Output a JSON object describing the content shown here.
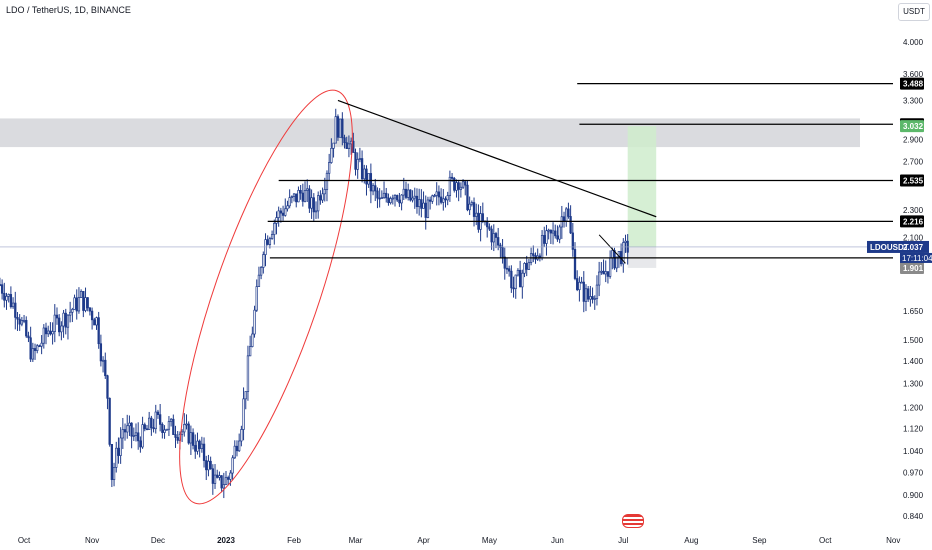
{
  "header": {
    "title": "LDO / TetherUS, 1D, BINANCE",
    "currency": "USDT"
  },
  "colors": {
    "up": "#1e3a8a",
    "down": "#1e3a8a",
    "zone": "#d6d7dc",
    "target": "#cfeccd",
    "ellipse": "#ef3b3b",
    "trend": "#000000",
    "price_label": "#1e3a8a"
  },
  "icons": {
    "flag": "us-flag-icon"
  },
  "chart_data": {
    "type": "candlestick",
    "title": "LDO / TetherUS, 1D, BINANCE",
    "yscale": "log",
    "ylim": [
      0.8,
      4.5
    ],
    "y_ticks": [
      "4.000",
      "3.600",
      "3.300",
      "2.900",
      "2.700",
      "2.300",
      "2.100",
      "1.650",
      "1.500",
      "1.400",
      "1.300",
      "1.200",
      "1.120",
      "1.040",
      "0.970",
      "0.900",
      "0.840"
    ],
    "x_ticks": [
      "Oct",
      "Nov",
      "Dec",
      "2023",
      "Feb",
      "Mar",
      "Apr",
      "May",
      "Jun",
      "Jul",
      "Aug",
      "Sep",
      "Oct",
      "Nov"
    ],
    "price_path": [
      [
        "2022-09-20",
        1.8
      ],
      [
        "2022-09-28",
        1.65
      ],
      [
        "2022-10-05",
        1.42
      ],
      [
        "2022-10-12",
        1.55
      ],
      [
        "2022-10-20",
        1.62
      ],
      [
        "2022-10-27",
        1.72
      ],
      [
        "2022-11-03",
        1.6
      ],
      [
        "2022-11-08",
        1.25
      ],
      [
        "2022-11-10",
        0.96
      ],
      [
        "2022-11-15",
        1.12
      ],
      [
        "2022-11-22",
        1.08
      ],
      [
        "2022-11-30",
        1.15
      ],
      [
        "2022-12-08",
        1.12
      ],
      [
        "2022-12-15",
        1.1
      ],
      [
        "2022-12-22",
        1.02
      ],
      [
        "2022-12-28",
        0.93
      ],
      [
        "2023-01-02",
        0.95
      ],
      [
        "2023-01-08",
        1.15
      ],
      [
        "2023-01-13",
        1.55
      ],
      [
        "2023-01-18",
        2.05
      ],
      [
        "2023-01-24",
        2.25
      ],
      [
        "2023-01-30",
        2.35
      ],
      [
        "2023-02-05",
        2.45
      ],
      [
        "2023-02-10",
        2.3
      ],
      [
        "2023-02-15",
        2.55
      ],
      [
        "2023-02-20",
        3.05
      ],
      [
        "2023-02-24",
        2.95
      ],
      [
        "2023-03-01",
        2.7
      ],
      [
        "2023-03-06",
        2.55
      ],
      [
        "2023-03-12",
        2.35
      ],
      [
        "2023-03-18",
        2.45
      ],
      [
        "2023-03-26",
        2.38
      ],
      [
        "2023-04-03",
        2.3
      ],
      [
        "2023-04-10",
        2.45
      ],
      [
        "2023-04-17",
        2.55
      ],
      [
        "2023-04-24",
        2.25
      ],
      [
        "2023-05-01",
        2.15
      ],
      [
        "2023-05-07",
        2.0
      ],
      [
        "2023-05-12",
        1.78
      ],
      [
        "2023-05-18",
        1.92
      ],
      [
        "2023-05-25",
        2.05
      ],
      [
        "2023-06-01",
        2.15
      ],
      [
        "2023-06-05",
        2.35
      ],
      [
        "2023-06-10",
        1.8
      ],
      [
        "2023-06-15",
        1.72
      ],
      [
        "2023-06-20",
        1.82
      ],
      [
        "2023-06-26",
        1.95
      ],
      [
        "2023-07-01",
        2.0
      ],
      [
        "2023-07-03",
        2.037
      ]
    ],
    "horizontal_levels": [
      {
        "value": 3.488,
        "label": "3.488",
        "start": "2023-06-10"
      },
      {
        "value": 3.051,
        "label": "3.051",
        "start": "2023-06-11"
      },
      {
        "value": 2.535,
        "label": "2.535",
        "start": "2023-01-25"
      },
      {
        "value": 2.216,
        "label": "2.216",
        "start": "2023-01-20"
      },
      {
        "value": 1.965,
        "label": "1.965",
        "start": "2023-01-21"
      }
    ],
    "price_labels": [
      {
        "symbol": "LDOUSDT",
        "value": "2.037",
        "countdown": "17:11:04"
      },
      {
        "value": "2.036"
      },
      {
        "value": "1.901"
      },
      {
        "value": "3.032"
      }
    ],
    "zones": [
      {
        "type": "resistance",
        "from": 2.83,
        "to": 3.11
      },
      {
        "type": "target",
        "start": "2023-07-03",
        "end": "2023-07-16",
        "from": 2.036,
        "to": 3.032
      },
      {
        "type": "stop",
        "start": "2023-07-03",
        "end": "2023-07-16",
        "from": 1.901,
        "to": 2.036
      }
    ],
    "trendline": {
      "start": [
        "2023-02-21",
        3.3
      ],
      "end": [
        "2023-07-16",
        2.25
      ]
    },
    "annotations": [
      "ellipse around Jan–Feb 2023 rally"
    ]
  }
}
